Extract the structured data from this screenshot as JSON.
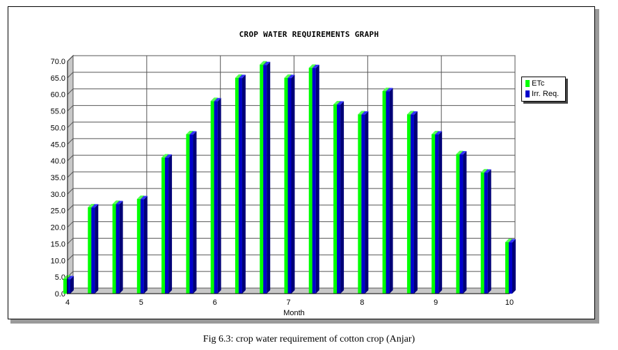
{
  "caption": "Fig 6.3: crop water requirement of cotton crop (Anjar)",
  "chart_data": {
    "type": "bar",
    "title": "CROP WATER REQUIREMENTS GRAPH",
    "xlabel": "Month",
    "ylabel": "",
    "ylim": [
      0,
      70
    ],
    "yticks": [
      "0.0",
      "5.0",
      "10.0",
      "15.0",
      "20.0",
      "25.0",
      "30.0",
      "35.0",
      "40.0",
      "45.0",
      "50.0",
      "55.0",
      "60.0",
      "65.0",
      "70.0"
    ],
    "xticks": [
      "4",
      "5",
      "6",
      "7",
      "8",
      "9",
      "10"
    ],
    "xlim": [
      4,
      10
    ],
    "x": [
      4.0,
      4.333,
      4.667,
      5.0,
      5.333,
      5.667,
      6.0,
      6.333,
      6.667,
      7.0,
      7.333,
      7.667,
      8.0,
      8.333,
      8.667,
      9.0,
      9.333,
      9.667,
      10.0
    ],
    "grid": true,
    "legend_position": "right",
    "series": [
      {
        "name": "ETc",
        "color": "#00ff00",
        "values": [
          4.5,
          26.0,
          27.0,
          28.5,
          41.0,
          48.0,
          58.0,
          65.0,
          69.0,
          65.0,
          68.0,
          57.0,
          54.0,
          61.0,
          54.0,
          48.0,
          42.0,
          36.5,
          15.5
        ]
      },
      {
        "name": "Irr. Req.",
        "color": "#0000cc",
        "values": [
          4.3,
          25.9,
          26.9,
          28.4,
          40.9,
          47.9,
          57.9,
          64.9,
          68.8,
          64.9,
          67.9,
          56.9,
          53.9,
          60.9,
          53.9,
          47.9,
          41.9,
          36.4,
          15.4
        ]
      }
    ]
  }
}
